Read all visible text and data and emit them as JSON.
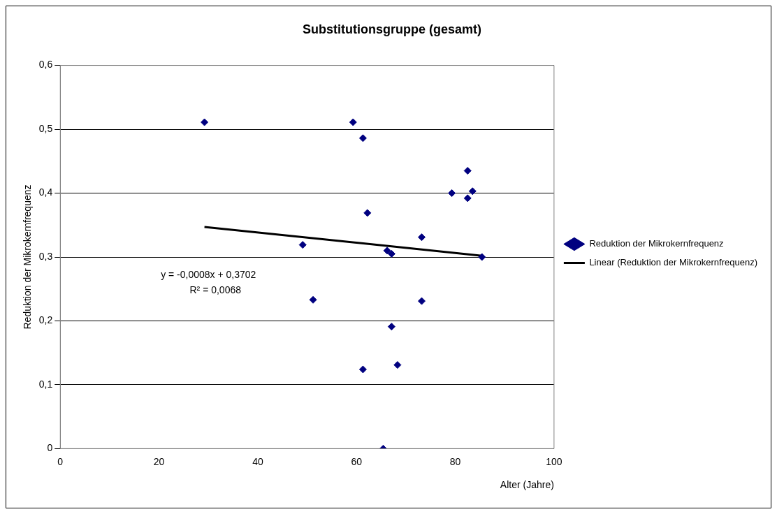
{
  "chart_data": {
    "type": "scatter",
    "title": "Substitutionsgruppe (gesamt)",
    "xlabel": "Alter (Jahre)",
    "ylabel": "Reduktion der Mikrokernfrequenz",
    "xlim": [
      0,
      100
    ],
    "xticks": [
      0,
      20,
      40,
      60,
      80,
      100
    ],
    "ylim": [
      0,
      0.6
    ],
    "yticks": [
      0,
      {
        "value": 0.1,
        "label": "0,1"
      },
      {
        "value": 0.2,
        "label": "0,2"
      },
      {
        "value": 0.3,
        "label": "0,3"
      },
      {
        "value": 0.4,
        "label": "0,4"
      },
      {
        "value": 0.5,
        "label": "0,5"
      },
      {
        "value": 0.6,
        "label": "0,6"
      }
    ],
    "grid": "y",
    "legend": "right",
    "annotations": [
      "y = -0,0008x + 0,3702",
      "R² = 0,0068"
    ],
    "series": [
      {
        "name": "Reduktion der Mikrokernfrequenz",
        "marker": "diamond",
        "color": "#000080",
        "x": [
          29.2,
          59.3,
          61.3,
          82.5,
          79.3,
          83.5,
          82.5,
          62.2,
          49.1,
          73.2,
          66.2,
          67.1,
          85.4,
          51.2,
          73.2,
          67.1,
          61.3,
          68.3,
          65.4
        ],
        "values": [
          0.511,
          0.511,
          0.486,
          0.435,
          0.4,
          0.403,
          0.392,
          0.369,
          0.319,
          0.331,
          0.31,
          0.305,
          0.3,
          0.233,
          0.231,
          0.191,
          0.124,
          0.131,
          0
        ]
      },
      {
        "name": "Linear (Reduktion der Mikrokernfrequenz)",
        "type": "line",
        "marker": "none",
        "line_style": "solid",
        "color": "#000000",
        "x": [
          29.2,
          85.4
        ],
        "values": [
          0.347,
          0.302
        ]
      }
    ]
  }
}
